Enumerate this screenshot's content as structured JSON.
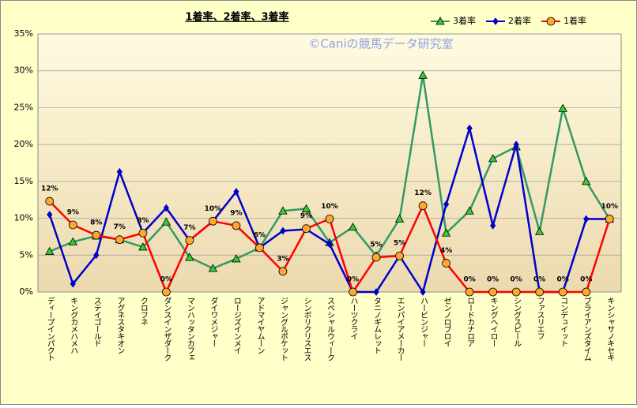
{
  "chart_data": {
    "type": "line",
    "title": "1着率、2着率、3着率",
    "watermark": "©Caniの競馬データ研究室",
    "categories": [
      "ディープインパクト",
      "キングカメハメハ",
      "ステイゴールド",
      "アグネスタキオン",
      "クロフネ",
      "ダンスインザダーク",
      "マンハッタンカフェ",
      "ダイワメジャー",
      "ロージズインメイ",
      "アドマイヤムーン",
      "ジャングルポケット",
      "シンボリクリスエス",
      "スペシャルウィーク",
      "ハーツクライ",
      "タニノギムレット",
      "エンパイアメーカー",
      "ハービンジャー",
      "ゼンノロブロイ",
      "ロードカナロア",
      "キングヘイロー",
      "シングスピール",
      "ファスリエフ",
      "コンデュイット",
      "ブライアンズタイム",
      "キンシャサノキセキ"
    ],
    "series": [
      {
        "name": "3着率",
        "color": "#339966",
        "marker": "triangle",
        "values": [
          5.5,
          6.8,
          7.6,
          7.1,
          6.1,
          9.5,
          4.7,
          3.2,
          4.5,
          6.0,
          11.0,
          11.3,
          6.7,
          8.8,
          4.9,
          9.9,
          29.4,
          8.0,
          11.0,
          18.1,
          19.7,
          8.2,
          24.9,
          15.0,
          9.9
        ]
      },
      {
        "name": "2着率",
        "color": "#0000cc",
        "marker": "diamond",
        "values": [
          10.5,
          1.1,
          5.0,
          16.3,
          8.0,
          11.4,
          7.0,
          9.6,
          13.6,
          6.0,
          8.3,
          8.5,
          6.5,
          0,
          0,
          4.9,
          0,
          11.9,
          22.2,
          9.0,
          20.0,
          0,
          0,
          9.9,
          9.9
        ]
      },
      {
        "name": "1着率",
        "color": "#ff0000",
        "marker": "circle",
        "values": [
          12.3,
          9.1,
          7.7,
          7.1,
          8.0,
          0,
          7.0,
          9.6,
          9.0,
          6.0,
          2.8,
          8.6,
          9.9,
          0,
          4.7,
          4.9,
          11.7,
          3.9,
          0,
          0,
          0,
          0,
          0,
          0,
          9.9
        ],
        "value_labels": [
          "12%",
          "9%",
          "8%",
          "7%",
          "8%",
          "0%",
          "7%",
          "10%",
          "9%",
          "6%",
          "3%",
          "9%",
          "10%",
          "0%",
          "5%",
          "5%",
          "12%",
          "4%",
          "0%",
          "0%",
          "0%",
          "0%",
          "0%",
          "0%",
          "10%"
        ]
      }
    ],
    "ylim": [
      0,
      35
    ],
    "yticks": [
      {
        "value": 0,
        "label": "0%"
      },
      {
        "value": 5,
        "label": "5%"
      },
      {
        "value": 10,
        "label": "10%"
      },
      {
        "value": 15,
        "label": "15%"
      },
      {
        "value": 20,
        "label": "20%"
      },
      {
        "value": 25,
        "label": "25%"
      },
      {
        "value": 30,
        "label": "30%"
      },
      {
        "value": 35,
        "label": "35%"
      }
    ],
    "grid": true
  }
}
